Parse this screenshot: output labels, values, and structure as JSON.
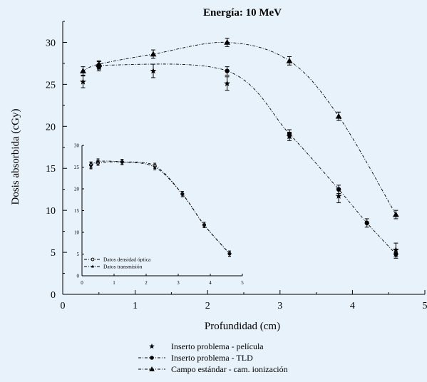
{
  "chart_data": [
    {
      "type": "scatter",
      "title": "Energía: 10 MeV",
      "xlabel": "Profundidad (cm)",
      "ylabel": "Dosis absorbida (cGy)",
      "xlim": [
        0,
        5
      ],
      "ylim": [
        0,
        32.5
      ],
      "x_ticks": [
        "0",
        "1",
        "2",
        "3",
        "4",
        "5"
      ],
      "y_ticks": [
        "0",
        "5",
        "10",
        "15",
        "20",
        "25",
        "30"
      ],
      "grid": false,
      "legend_position": "bottom-center",
      "series": [
        {
          "name": "Inserto problema - película",
          "marker": "star",
          "points": [
            {
              "x": 0.28,
              "y": 25.3,
              "err": 0.7
            },
            {
              "x": 0.5,
              "y": 27.0,
              "err": 0.4
            },
            {
              "x": 1.25,
              "y": 26.6,
              "err": 0.8
            },
            {
              "x": 2.27,
              "y": 25.1,
              "err": 0.8
            },
            {
              "x": 3.13,
              "y": 18.8,
              "err": 0.5
            },
            {
              "x": 3.81,
              "y": 11.7,
              "err": 0.8
            },
            {
              "x": 4.6,
              "y": 5.3,
              "err": 0.8
            }
          ]
        },
        {
          "name": "Inserto problema - TLD",
          "marker": "circle",
          "points": [
            {
              "x": 0.5,
              "y": 27.3,
              "err": 0.4
            },
            {
              "x": 2.27,
              "y": 26.6,
              "err": 0.5
            },
            {
              "x": 3.13,
              "y": 19.1,
              "err": 0.5
            },
            {
              "x": 3.81,
              "y": 12.5,
              "err": 0.5
            },
            {
              "x": 4.2,
              "y": 8.5,
              "err": 0.5
            },
            {
              "x": 4.6,
              "y": 4.8,
              "err": 0.5
            }
          ]
        },
        {
          "name": "Campo estándar - cam. ionización",
          "marker": "triangle",
          "points": [
            {
              "x": 0.28,
              "y": 26.6,
              "err": 0.5
            },
            {
              "x": 0.5,
              "y": 27.4,
              "err": 0.4
            },
            {
              "x": 1.25,
              "y": 28.6,
              "err": 0.5
            },
            {
              "x": 2.27,
              "y": 30.0,
              "err": 0.5
            },
            {
              "x": 3.13,
              "y": 27.8,
              "err": 0.5
            },
            {
              "x": 3.81,
              "y": 21.2,
              "err": 0.5
            },
            {
              "x": 4.6,
              "y": 9.5,
              "err": 0.5
            }
          ]
        }
      ]
    },
    {
      "type": "line",
      "title": "",
      "xlabel": "",
      "ylabel": "",
      "xlim": [
        0,
        5
      ],
      "ylim": [
        0,
        30
      ],
      "x_ticks": [
        "0",
        "1",
        "2",
        "3",
        "4",
        "5"
      ],
      "y_ticks": [
        "0",
        "5",
        "10",
        "15",
        "20",
        "25",
        "30"
      ],
      "legend_position": "bottom-left",
      "series": [
        {
          "name": "Datos densidad óptica",
          "marker": "open-circle",
          "points": [
            {
              "x": 0.28,
              "y": 25.5,
              "err": 0.7
            },
            {
              "x": 0.5,
              "y": 26.0,
              "err": 0.6
            },
            {
              "x": 1.25,
              "y": 26.2,
              "err": 0.6
            },
            {
              "x": 2.27,
              "y": 25.3,
              "err": 0.6
            },
            {
              "x": 3.13,
              "y": 18.8,
              "err": 0.6
            },
            {
              "x": 3.81,
              "y": 11.7,
              "err": 0.6
            },
            {
              "x": 4.6,
              "y": 5.1,
              "err": 0.6
            }
          ]
        },
        {
          "name": "Datos transmisión",
          "marker": "star",
          "points": [
            {
              "x": 0.28,
              "y": 25.3,
              "err": 0.7
            },
            {
              "x": 0.5,
              "y": 26.3,
              "err": 0.6
            },
            {
              "x": 1.25,
              "y": 26.2,
              "err": 0.6
            },
            {
              "x": 2.27,
              "y": 25.0,
              "err": 0.6
            },
            {
              "x": 3.13,
              "y": 18.8,
              "err": 0.6
            },
            {
              "x": 3.81,
              "y": 11.7,
              "err": 0.6
            },
            {
              "x": 4.6,
              "y": 5.1,
              "err": 0.6
            }
          ]
        }
      ]
    }
  ]
}
